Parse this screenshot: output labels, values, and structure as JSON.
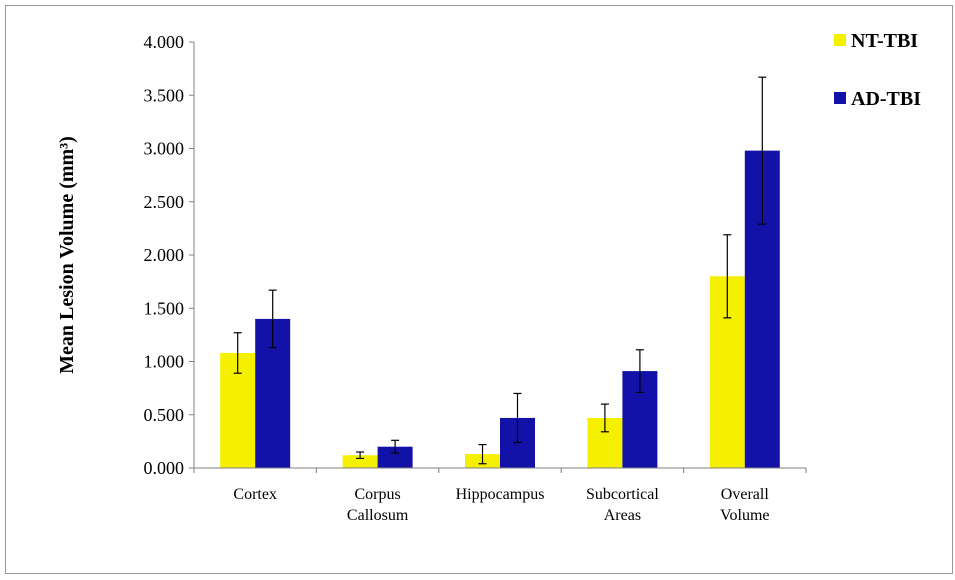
{
  "chart_data": {
    "type": "bar",
    "title": "",
    "xlabel": "",
    "ylabel": "Mean Lesion Volume (mm³)",
    "ylim": [
      0,
      4
    ],
    "yticks": [
      "0.000",
      "0.500",
      "1.000",
      "1.500",
      "2.000",
      "2.500",
      "3.000",
      "3.500",
      "4.000"
    ],
    "ytick_values": [
      0,
      0.5,
      1,
      1.5,
      2,
      2.5,
      3,
      3.5,
      4
    ],
    "categories": [
      "Cortex",
      "Corpus Callosum",
      "Hippocampus",
      "Subcortical Areas",
      "Overall Volume"
    ],
    "category_lines": [
      [
        "Cortex",
        ""
      ],
      [
        "Corpus",
        "Callosum"
      ],
      [
        "Hippocampus",
        ""
      ],
      [
        "Subcortical",
        "Areas"
      ],
      [
        "Overall",
        "Volume"
      ]
    ],
    "series": [
      {
        "name": "NT-TBI",
        "color": "#f5f000",
        "values": [
          1.08,
          0.12,
          0.13,
          0.47,
          1.8
        ],
        "errors": [
          0.19,
          0.03,
          0.09,
          0.13,
          0.39
        ]
      },
      {
        "name": "AD-TBI",
        "color": "#1212a8",
        "values": [
          1.4,
          0.2,
          0.47,
          0.91,
          2.98
        ],
        "errors": [
          0.27,
          0.06,
          0.23,
          0.2,
          0.69
        ]
      }
    ],
    "grid": false,
    "legend_position": "top-right"
  }
}
